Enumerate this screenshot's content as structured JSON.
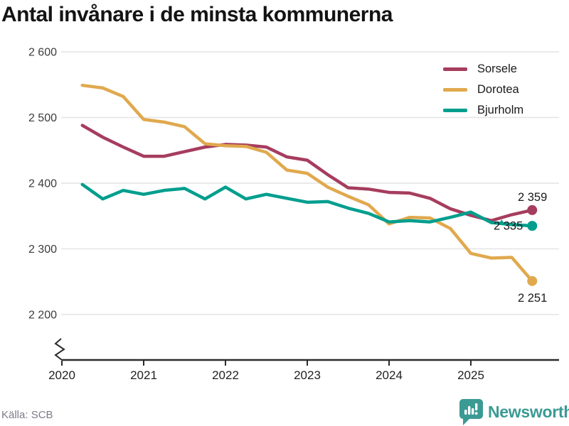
{
  "title": "Antal invånare i de minsta kommunerna",
  "source": "Källa: SCB",
  "branding": {
    "logo_text": "Newsworthy",
    "logo_color": "#3b9a94",
    "logo_icon": "speech-bubble-bar-chart"
  },
  "chart_data": {
    "type": "line",
    "title": "Antal invånare i de minsta kommunerna",
    "xlabel": "",
    "ylabel": "",
    "x_start": 2020.25,
    "x_step": 0.25,
    "xlim": [
      2020,
      2025.9
    ],
    "ylim": [
      2200,
      2600
    ],
    "grid": true,
    "y_axis_break": true,
    "legend_position": "top-right",
    "x_ticks": [
      {
        "value": 2020,
        "label": "2020"
      },
      {
        "value": 2021,
        "label": "2021"
      },
      {
        "value": 2022,
        "label": "2022"
      },
      {
        "value": 2023,
        "label": "2023"
      },
      {
        "value": 2024,
        "label": "2024"
      },
      {
        "value": 2025,
        "label": "2025"
      }
    ],
    "y_ticks": [
      {
        "value": 2600,
        "label": "2 600"
      },
      {
        "value": 2500,
        "label": "2 500"
      },
      {
        "value": 2400,
        "label": "2 400"
      },
      {
        "value": 2300,
        "label": "2 300"
      },
      {
        "value": 2200,
        "label": "2 200"
      }
    ],
    "series": [
      {
        "name": "Sorsele",
        "color": "#a63d5e",
        "end_label": "2 359",
        "end_label_pos": "above",
        "values": [
          2488,
          2470,
          2455,
          2441,
          2441,
          2448,
          2455,
          2459,
          2458,
          2455,
          2440,
          2435,
          2413,
          2393,
          2391,
          2386,
          2385,
          2377,
          2361,
          2351,
          2343,
          2352,
          2359
        ]
      },
      {
        "name": "Dorotea",
        "color": "#e0a94e",
        "end_label": "2 251",
        "end_label_pos": "below",
        "values": [
          2549,
          2545,
          2532,
          2497,
          2493,
          2486,
          2460,
          2457,
          2456,
          2447,
          2420,
          2415,
          2394,
          2380,
          2367,
          2338,
          2348,
          2347,
          2331,
          2293,
          2286,
          2287,
          2251
        ]
      },
      {
        "name": "Bjurholm",
        "color": "#009e8e",
        "end_label": "2 335",
        "end_label_pos": "left",
        "values": [
          2398,
          2376,
          2389,
          2383,
          2389,
          2392,
          2376,
          2394,
          2376,
          2383,
          2377,
          2371,
          2372,
          2362,
          2354,
          2341,
          2343,
          2341,
          2348,
          2356,
          2340,
          2337,
          2335
        ]
      }
    ]
  }
}
